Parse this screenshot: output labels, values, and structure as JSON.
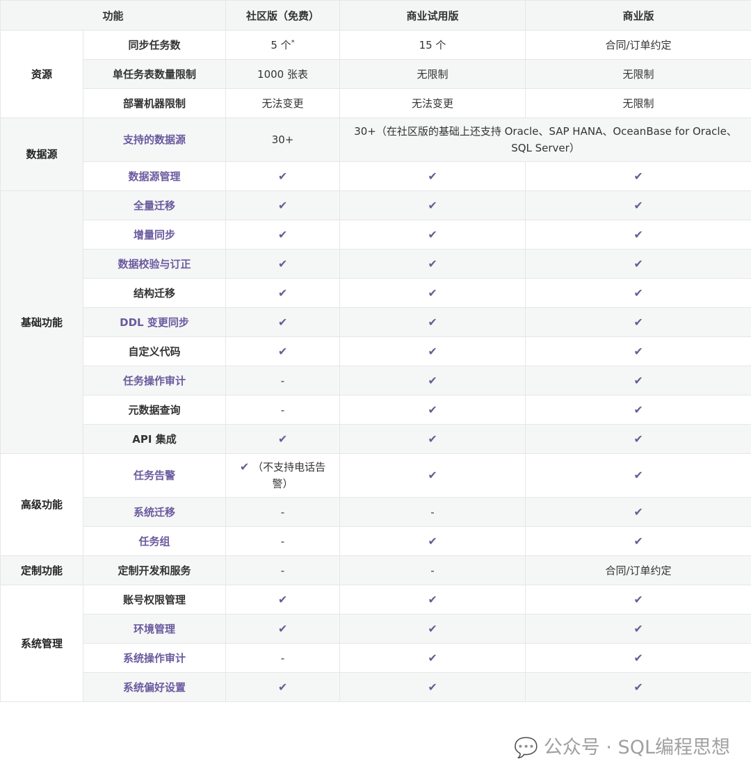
{
  "header": {
    "feature": "功能",
    "community": "社区版（免费）",
    "trial": "商业试用版",
    "commercial": "商业版"
  },
  "check_color": "#6b5b95",
  "link_color": "#6a5a9e",
  "categories": [
    "资源",
    "数据源",
    "基础功能",
    "高级功能",
    "定制功能",
    "系统管理"
  ],
  "rows": [
    {
      "feature": "同步任务数",
      "link": false,
      "community": "5 个",
      "community_sup": "*",
      "trial": "15 个",
      "commercial": "合同/订单约定"
    },
    {
      "feature": "单任务表数量限制",
      "link": false,
      "community": "1000 张表",
      "trial": "无限制",
      "commercial": "无限制"
    },
    {
      "feature": "部署机器限制",
      "link": false,
      "community": "无法变更",
      "trial": "无法变更",
      "commercial": "无限制"
    },
    {
      "feature": "支持的数据源",
      "link": true,
      "community": "30+",
      "trial_commercial": "30+（在社区版的基础上还支持 Oracle、SAP HANA、OceanBase for Oracle、SQL Server）"
    },
    {
      "feature": "数据源管理",
      "link": true,
      "community": "✔",
      "trial": "✔",
      "commercial": "✔"
    },
    {
      "feature": "全量迁移",
      "link": true,
      "community": "✔",
      "trial": "✔",
      "commercial": "✔"
    },
    {
      "feature": "增量同步",
      "link": true,
      "community": "✔",
      "trial": "✔",
      "commercial": "✔"
    },
    {
      "feature": "数据校验与订正",
      "link": true,
      "community": "✔",
      "trial": "✔",
      "commercial": "✔"
    },
    {
      "feature": "结构迁移",
      "link": false,
      "community": "✔",
      "trial": "✔",
      "commercial": "✔"
    },
    {
      "feature": "DDL 变更同步",
      "link": true,
      "community": "✔",
      "trial": "✔",
      "commercial": "✔"
    },
    {
      "feature": "自定义代码",
      "link": false,
      "community": "✔",
      "trial": "✔",
      "commercial": "✔"
    },
    {
      "feature": "任务操作审计",
      "link": true,
      "community": "-",
      "trial": "✔",
      "commercial": "✔"
    },
    {
      "feature": "元数据查询",
      "link": false,
      "community": "-",
      "trial": "✔",
      "commercial": "✔"
    },
    {
      "feature": "API 集成",
      "link": false,
      "community": "✔",
      "trial": "✔",
      "commercial": "✔"
    },
    {
      "feature": "任务告警",
      "link": true,
      "community": "✔",
      "community_note": "（不支持电话告警）",
      "trial": "✔",
      "commercial": "✔"
    },
    {
      "feature": "系统迁移",
      "link": true,
      "community": "-",
      "trial": "-",
      "commercial": "✔"
    },
    {
      "feature": "任务组",
      "link": true,
      "community": "-",
      "trial": "✔",
      "commercial": "✔"
    },
    {
      "feature": "定制开发和服务",
      "link": false,
      "community": "-",
      "trial": "-",
      "commercial": "合同/订单约定"
    },
    {
      "feature": "账号权限管理",
      "link": false,
      "community": "✔",
      "trial": "✔",
      "commercial": "✔"
    },
    {
      "feature": "环境管理",
      "link": true,
      "community": "✔",
      "trial": "✔",
      "commercial": "✔"
    },
    {
      "feature": "系统操作审计",
      "link": true,
      "community": "-",
      "trial": "✔",
      "commercial": "✔"
    },
    {
      "feature": "系统偏好设置",
      "link": true,
      "community": "✔",
      "trial": "✔",
      "commercial": "✔"
    }
  ],
  "watermark": {
    "icon": "wechat-icon",
    "text": "公众号 · SQL编程思想"
  }
}
